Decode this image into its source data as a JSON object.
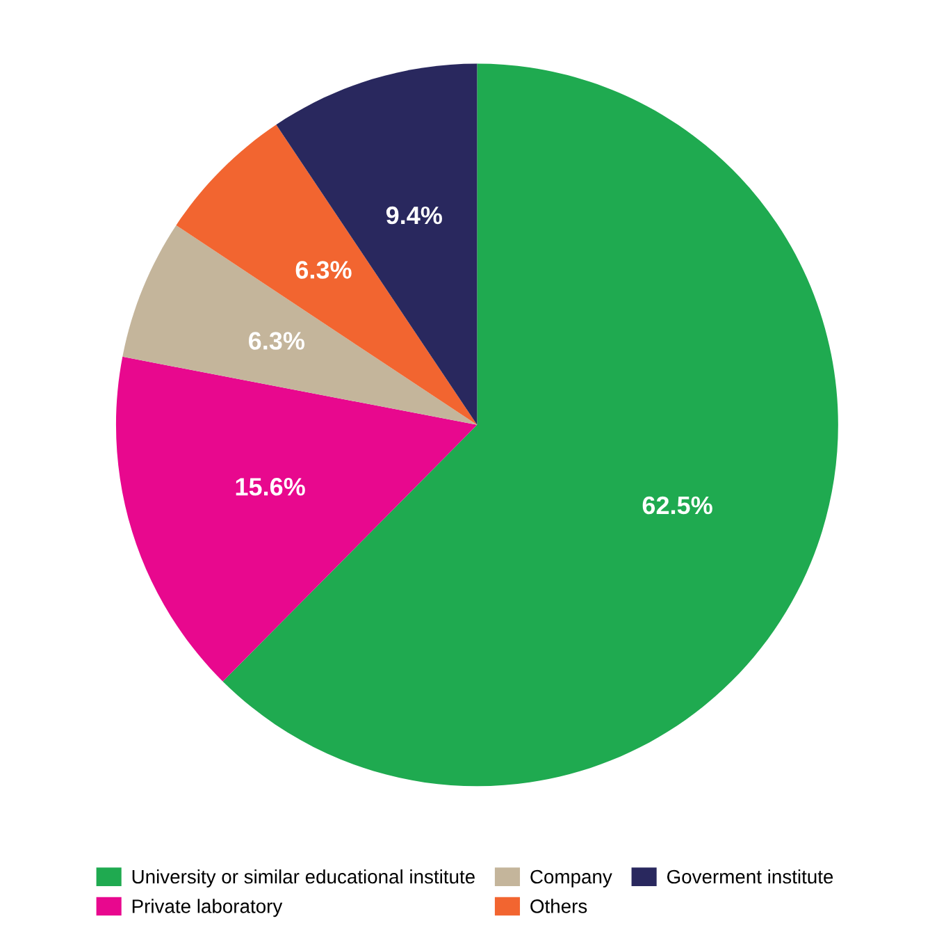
{
  "chart_data": {
    "type": "pie",
    "categories": [
      "University or similar educational institute",
      "Private laboratory",
      "Company",
      "Others",
      "Goverment institute"
    ],
    "values": [
      62.5,
      15.6,
      6.3,
      6.3,
      9.4
    ],
    "colors": [
      "#1faa50",
      "#e8088e",
      "#c4b59b",
      "#f26530",
      "#29285e"
    ],
    "value_labels": [
      "62.5%",
      "15.6%",
      "6.3%",
      "6.3%",
      "9.4%"
    ],
    "legend": "bottom"
  }
}
